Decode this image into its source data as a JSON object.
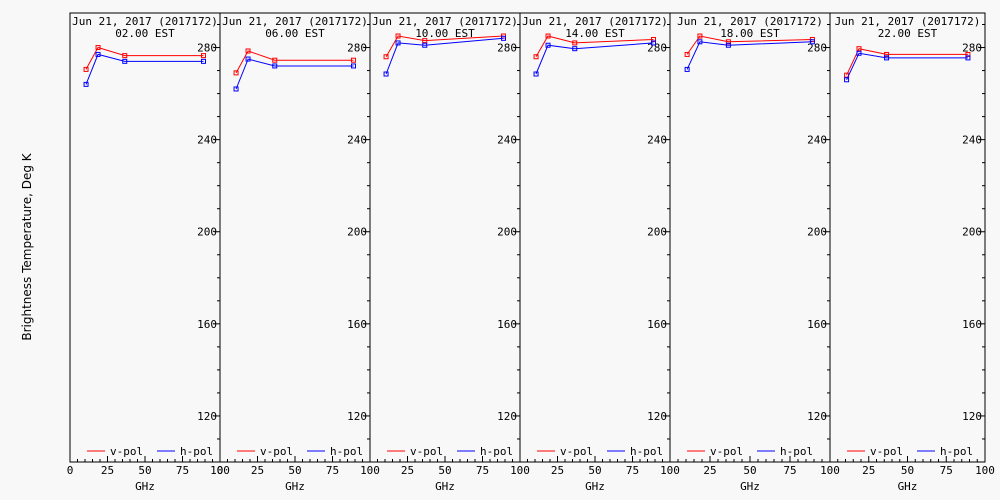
{
  "y_axis_label": "Brightness Temperature, Deg K",
  "x_axis_label": "GHz",
  "colors": {
    "v_pol": "#ff0000",
    "h_pol": "#0000ff",
    "axis": "#000000",
    "background": "#f8f8f8"
  },
  "chart_data": [
    {
      "type": "line",
      "title": "Jun 21, 2017 (2017172)",
      "subtitle": "02.00 EST",
      "x": [
        10.7,
        18.7,
        36.5,
        89.0
      ],
      "xlim": [
        0,
        100
      ],
      "ylim": [
        100,
        295
      ],
      "xticks": [
        "0",
        "25",
        "50",
        "75",
        "100"
      ],
      "yticks": [
        "120",
        "160",
        "200",
        "240",
        "280"
      ],
      "legend_position": "bottom",
      "series": [
        {
          "name": "v-pol",
          "values": [
            270.5,
            280.0,
            276.5,
            276.5
          ]
        },
        {
          "name": "h-pol",
          "values": [
            264.0,
            277.0,
            274.0,
            274.0
          ]
        }
      ]
    },
    {
      "type": "line",
      "title": "Jun 21, 2017 (2017172)",
      "subtitle": "06.00 EST",
      "x": [
        10.7,
        18.7,
        36.5,
        89.0
      ],
      "xlim": [
        0,
        100
      ],
      "ylim": [
        100,
        295
      ],
      "xticks": [
        "0",
        "25",
        "50",
        "75",
        "100"
      ],
      "yticks": [
        "120",
        "160",
        "200",
        "240",
        "280"
      ],
      "legend_position": "bottom",
      "series": [
        {
          "name": "v-pol",
          "values": [
            269.0,
            278.5,
            274.5,
            274.5
          ]
        },
        {
          "name": "h-pol",
          "values": [
            262.0,
            275.0,
            272.0,
            272.0
          ]
        }
      ]
    },
    {
      "type": "line",
      "title": "Jun 21, 2017 (2017172)",
      "subtitle": "10.00 EST",
      "x": [
        10.7,
        18.7,
        36.5,
        89.0
      ],
      "xlim": [
        0,
        100
      ],
      "ylim": [
        100,
        295
      ],
      "xticks": [
        "25",
        "50",
        "75",
        "100"
      ],
      "yticks": [
        "120",
        "160",
        "200",
        "240",
        "280"
      ],
      "legend_position": "bottom",
      "series": [
        {
          "name": "v-pol",
          "values": [
            276.0,
            285.0,
            283.0,
            285.0
          ]
        },
        {
          "name": "h-pol",
          "values": [
            268.5,
            282.0,
            281.0,
            284.0
          ]
        }
      ]
    },
    {
      "type": "line",
      "title": "Jun 21, 2017 (2017172)",
      "subtitle": "14.00 EST",
      "x": [
        10.7,
        18.7,
        36.5,
        89.0
      ],
      "xlim": [
        0,
        100
      ],
      "ylim": [
        100,
        295
      ],
      "xticks": [
        "25",
        "50",
        "75",
        "100"
      ],
      "yticks": [
        "120",
        "160",
        "200",
        "240",
        "280"
      ],
      "legend_position": "bottom",
      "series": [
        {
          "name": "v-pol",
          "values": [
            276.0,
            285.0,
            282.0,
            283.5
          ]
        },
        {
          "name": "h-pol",
          "values": [
            268.5,
            281.0,
            279.5,
            282.0
          ]
        }
      ]
    },
    {
      "type": "line",
      "title": "Jun 21, 2017 (2017172)",
      "subtitle": "18.00 EST",
      "x": [
        10.7,
        18.7,
        36.5,
        89.0
      ],
      "xlim": [
        0,
        100
      ],
      "ylim": [
        100,
        295
      ],
      "xticks": [
        "25",
        "50",
        "75",
        "100"
      ],
      "yticks": [
        "120",
        "160",
        "200",
        "240",
        "280"
      ],
      "legend_position": "bottom",
      "series": [
        {
          "name": "v-pol",
          "values": [
            277.0,
            285.0,
            282.5,
            283.5
          ]
        },
        {
          "name": "h-pol",
          "values": [
            270.5,
            282.5,
            281.0,
            282.5
          ]
        }
      ]
    },
    {
      "type": "line",
      "title": "Jun 21, 2017 (2017172)",
      "subtitle": "22.00 EST",
      "x": [
        10.7,
        18.7,
        36.5,
        89.0
      ],
      "xlim": [
        0,
        100
      ],
      "ylim": [
        100,
        295
      ],
      "xticks": [
        "25",
        "50",
        "75",
        "100"
      ],
      "yticks": [
        "120",
        "160",
        "200",
        "240",
        "280"
      ],
      "legend_position": "bottom",
      "series": [
        {
          "name": "v-pol",
          "values": [
            268.0,
            279.5,
            277.0,
            277.0
          ]
        },
        {
          "name": "h-pol",
          "values": [
            266.0,
            277.5,
            275.5,
            275.5
          ]
        }
      ]
    }
  ]
}
